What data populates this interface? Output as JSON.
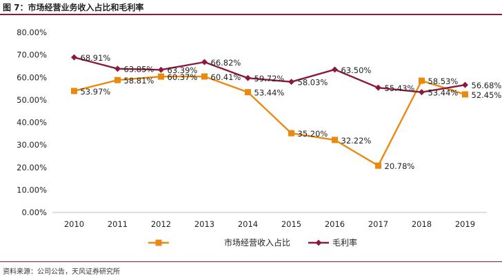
{
  "figure_title": "图 7：市场经营业务收入占比和毛利率",
  "source_note": "资料来源：公司公告，天风证券研究所",
  "chart_data": {
    "type": "line",
    "title": "市场经营业务收入占比和毛利率",
    "xlabel": "",
    "ylabel": "",
    "categories": [
      "2010",
      "2011",
      "2012",
      "2013",
      "2014",
      "2015",
      "2016",
      "2017",
      "2018",
      "2019"
    ],
    "ylim": [
      0,
      80
    ],
    "yticks": [
      0,
      10,
      20,
      30,
      40,
      50,
      60,
      70,
      80
    ],
    "ytick_labels": [
      "0.00%",
      "10.00%",
      "20.00%",
      "30.00%",
      "40.00%",
      "50.00%",
      "60.00%",
      "70.00%",
      "80.00%"
    ],
    "grid": false,
    "legend_position": "bottom",
    "series": [
      {
        "name": "市场经营收入占比",
        "color": "#e88a10",
        "marker": "square",
        "values": [
          53.97,
          58.81,
          60.37,
          60.41,
          53.44,
          35.2,
          32.22,
          20.78,
          58.53,
          52.45
        ],
        "labels": [
          "53.97%",
          "58.81%",
          "60.37%",
          "60.41%",
          "53.44%",
          "35.20%",
          "32.22%",
          "20.78%",
          "58.53%",
          "52.45%"
        ]
      },
      {
        "name": "毛利率",
        "color": "#8b1a3a",
        "marker": "diamond",
        "values": [
          68.91,
          63.85,
          63.39,
          66.82,
          59.72,
          58.03,
          63.5,
          55.43,
          53.44,
          56.68
        ],
        "labels": [
          "68.91%",
          "63.85%",
          "63.39%",
          "66.82%",
          "59.72%",
          "58.03%",
          "63.50%",
          "55.43%",
          "53.44%",
          "56.68%"
        ]
      }
    ]
  }
}
